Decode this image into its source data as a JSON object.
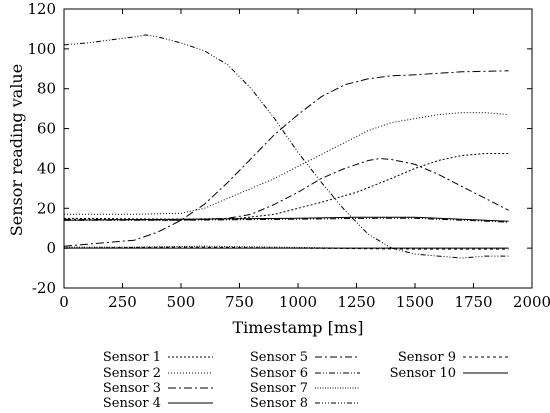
{
  "chart_data": {
    "type": "line",
    "title": "",
    "xlabel": "Timestamp [ms]",
    "ylabel": "Sensor reading value",
    "xlim": [
      0,
      2000
    ],
    "ylim": [
      -20,
      120
    ],
    "xticks": [
      0,
      250,
      500,
      750,
      1000,
      1250,
      1500,
      1750,
      2000
    ],
    "yticks": [
      -20,
      0,
      20,
      40,
      60,
      80,
      100,
      120
    ],
    "grid": false,
    "legend_position": "bottom",
    "series": [
      {
        "name": "Sensor 1",
        "dash": "2,2",
        "points": [
          [
            0,
            15
          ],
          [
            500,
            14.5
          ],
          [
            750,
            15
          ],
          [
            900,
            17
          ],
          [
            1000,
            20
          ],
          [
            1100,
            23
          ],
          [
            1250,
            28
          ],
          [
            1400,
            35
          ],
          [
            1500,
            40
          ],
          [
            1600,
            44
          ],
          [
            1700,
            46.5
          ],
          [
            1800,
            47.5
          ],
          [
            1900,
            47.5
          ]
        ]
      },
      {
        "name": "Sensor 2",
        "dash": "1,2",
        "points": [
          [
            0,
            17
          ],
          [
            300,
            17
          ],
          [
            500,
            17.5
          ],
          [
            600,
            20
          ],
          [
            700,
            25
          ],
          [
            800,
            30
          ],
          [
            900,
            35
          ],
          [
            1000,
            41
          ],
          [
            1100,
            47
          ],
          [
            1200,
            53
          ],
          [
            1300,
            59
          ],
          [
            1400,
            63
          ],
          [
            1500,
            65
          ],
          [
            1600,
            67
          ],
          [
            1700,
            68
          ],
          [
            1800,
            68
          ],
          [
            1900,
            67
          ]
        ]
      },
      {
        "name": "Sensor 3",
        "dash": "8,3,2,3",
        "points": [
          [
            0,
            1
          ],
          [
            100,
            2
          ],
          [
            300,
            4
          ],
          [
            400,
            8
          ],
          [
            500,
            14
          ],
          [
            600,
            22
          ],
          [
            700,
            33
          ],
          [
            800,
            45
          ],
          [
            900,
            57
          ],
          [
            1000,
            67
          ],
          [
            1100,
            76
          ],
          [
            1200,
            82
          ],
          [
            1300,
            85
          ],
          [
            1400,
            86.5
          ],
          [
            1500,
            87
          ],
          [
            1700,
            88.5
          ],
          [
            1900,
            89
          ]
        ]
      },
      {
        "name": "Sensor 4",
        "dash": "",
        "points": [
          [
            0,
            0
          ],
          [
            500,
            0
          ],
          [
            1000,
            0
          ],
          [
            1500,
            0
          ],
          [
            1900,
            0
          ]
        ]
      },
      {
        "name": "Sensor 5",
        "dash": "7,3,2,3",
        "points": [
          [
            0,
            14.5
          ],
          [
            500,
            14
          ],
          [
            700,
            15
          ],
          [
            800,
            17
          ],
          [
            900,
            22
          ],
          [
            1000,
            28
          ],
          [
            1100,
            35
          ],
          [
            1200,
            40
          ],
          [
            1300,
            44
          ],
          [
            1350,
            45
          ],
          [
            1400,
            44.5
          ],
          [
            1500,
            42
          ],
          [
            1600,
            37
          ],
          [
            1700,
            31
          ],
          [
            1800,
            25
          ],
          [
            1900,
            19
          ]
        ]
      },
      {
        "name": "Sensor 6",
        "dash": "6,2,1,2,1,2",
        "points": [
          [
            0,
            14
          ],
          [
            500,
            14
          ],
          [
            1000,
            14.5
          ],
          [
            1300,
            15
          ],
          [
            1500,
            15
          ],
          [
            1700,
            14
          ],
          [
            1900,
            13
          ]
        ]
      },
      {
        "name": "Sensor 7",
        "dash": "1,1.5",
        "points": [
          [
            0,
            0.5
          ],
          [
            300,
            0.5
          ],
          [
            600,
            1
          ],
          [
            900,
            0.5
          ],
          [
            1200,
            0
          ],
          [
            1500,
            0
          ],
          [
            1900,
            0
          ]
        ]
      },
      {
        "name": "Sensor 8",
        "dash": "5,2,1,2,1,2,1,2",
        "points": [
          [
            0,
            102
          ],
          [
            100,
            103
          ],
          [
            200,
            104.5
          ],
          [
            300,
            106
          ],
          [
            350,
            107
          ],
          [
            400,
            106
          ],
          [
            500,
            103
          ],
          [
            600,
            99
          ],
          [
            700,
            92
          ],
          [
            800,
            80
          ],
          [
            900,
            65
          ],
          [
            1000,
            48
          ],
          [
            1100,
            33
          ],
          [
            1200,
            19
          ],
          [
            1300,
            7
          ],
          [
            1400,
            0
          ],
          [
            1500,
            -3
          ],
          [
            1600,
            -4
          ],
          [
            1700,
            -5
          ],
          [
            1800,
            -4
          ],
          [
            1900,
            -4
          ]
        ]
      },
      {
        "name": "Sensor 9",
        "dash": "3,3",
        "points": [
          [
            0,
            0
          ],
          [
            500,
            0.5
          ],
          [
            1000,
            0
          ],
          [
            1500,
            -0.5
          ],
          [
            1900,
            -0.5
          ]
        ]
      },
      {
        "name": "Sensor 10",
        "dash": "",
        "points": [
          [
            0,
            14
          ],
          [
            500,
            14.5
          ],
          [
            1000,
            15
          ],
          [
            1250,
            15.5
          ],
          [
            1500,
            15.5
          ],
          [
            1700,
            14.5
          ],
          [
            1900,
            13.5
          ]
        ]
      }
    ],
    "legend_columns": [
      [
        "Sensor 1",
        "Sensor 2",
        "Sensor 3",
        "Sensor 4"
      ],
      [
        "Sensor 5",
        "Sensor 6",
        "Sensor 7",
        "Sensor 8"
      ],
      [
        "Sensor 9",
        "Sensor 10"
      ]
    ]
  }
}
